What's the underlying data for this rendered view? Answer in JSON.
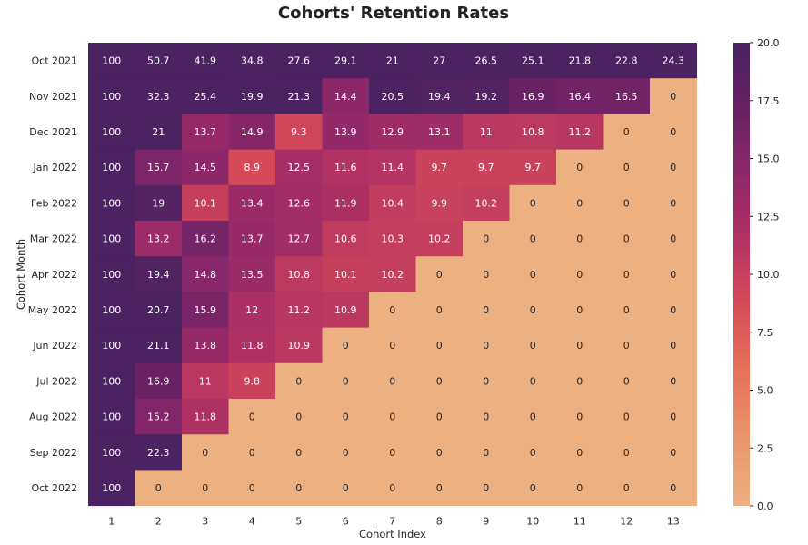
{
  "chart_data": {
    "type": "heatmap",
    "title": "Cohorts' Retention Rates",
    "xlabel": "Cohort Index",
    "ylabel": "Cohort Month",
    "x": [
      "1",
      "2",
      "3",
      "4",
      "5",
      "6",
      "7",
      "8",
      "9",
      "10",
      "11",
      "12",
      "13"
    ],
    "y": [
      "Oct 2021",
      "Nov 2021",
      "Dec 2021",
      "Jan 2022",
      "Feb 2022",
      "Mar 2022",
      "Apr 2022",
      "May 2022",
      "Jun 2022",
      "Jul 2022",
      "Aug 2022",
      "Sep 2022",
      "Oct 2022"
    ],
    "values": [
      [
        100,
        50.7,
        41.9,
        34.8,
        27.6,
        29.1,
        21,
        27,
        26.5,
        25.1,
        21.8,
        22.8,
        24.3
      ],
      [
        100,
        32.3,
        25.4,
        19.9,
        21.3,
        14.4,
        20.5,
        19.4,
        19.2,
        16.9,
        16.4,
        16.5,
        0
      ],
      [
        100,
        21,
        13.7,
        14.9,
        9.3,
        13.9,
        12.9,
        13.1,
        11,
        10.8,
        11.2,
        0,
        0
      ],
      [
        100,
        15.7,
        14.5,
        8.9,
        12.5,
        11.6,
        11.4,
        9.7,
        9.7,
        9.7,
        0,
        0,
        0
      ],
      [
        100,
        19,
        10.1,
        13.4,
        12.6,
        11.9,
        10.4,
        9.9,
        10.2,
        0,
        0,
        0,
        0
      ],
      [
        100,
        13.2,
        16.2,
        13.7,
        12.7,
        10.6,
        10.3,
        10.2,
        0,
        0,
        0,
        0,
        0
      ],
      [
        100,
        19.4,
        14.8,
        13.5,
        10.8,
        10.1,
        10.2,
        0,
        0,
        0,
        0,
        0,
        0
      ],
      [
        100,
        20.7,
        15.9,
        12,
        11.2,
        10.9,
        0,
        0,
        0,
        0,
        0,
        0,
        0
      ],
      [
        100,
        21.1,
        13.8,
        11.8,
        10.9,
        0,
        0,
        0,
        0,
        0,
        0,
        0,
        0
      ],
      [
        100,
        16.9,
        11,
        9.8,
        0,
        0,
        0,
        0,
        0,
        0,
        0,
        0,
        0
      ],
      [
        100,
        15.2,
        11.8,
        0,
        0,
        0,
        0,
        0,
        0,
        0,
        0,
        0,
        0
      ],
      [
        100,
        22.3,
        0,
        0,
        0,
        0,
        0,
        0,
        0,
        0,
        0,
        0,
        0
      ],
      [
        100,
        0,
        0,
        0,
        0,
        0,
        0,
        0,
        0,
        0,
        0,
        0,
        0
      ]
    ],
    "vmin": 0,
    "vmax": 20,
    "colormap": "flare",
    "colorbar_ticks": [
      "0.0",
      "2.5",
      "5.0",
      "7.5",
      "10.0",
      "12.5",
      "15.0",
      "17.5",
      "20.0"
    ],
    "colorbar_tick_values": [
      0,
      2.5,
      5,
      7.5,
      10,
      12.5,
      15,
      17.5,
      20
    ],
    "colors": {
      "low": "#edb081",
      "high": "#4b2362",
      "label_light": "#ffffff",
      "label_dark": "#262626"
    },
    "annotated": true,
    "grid": false,
    "legend": "colorbar-right"
  }
}
